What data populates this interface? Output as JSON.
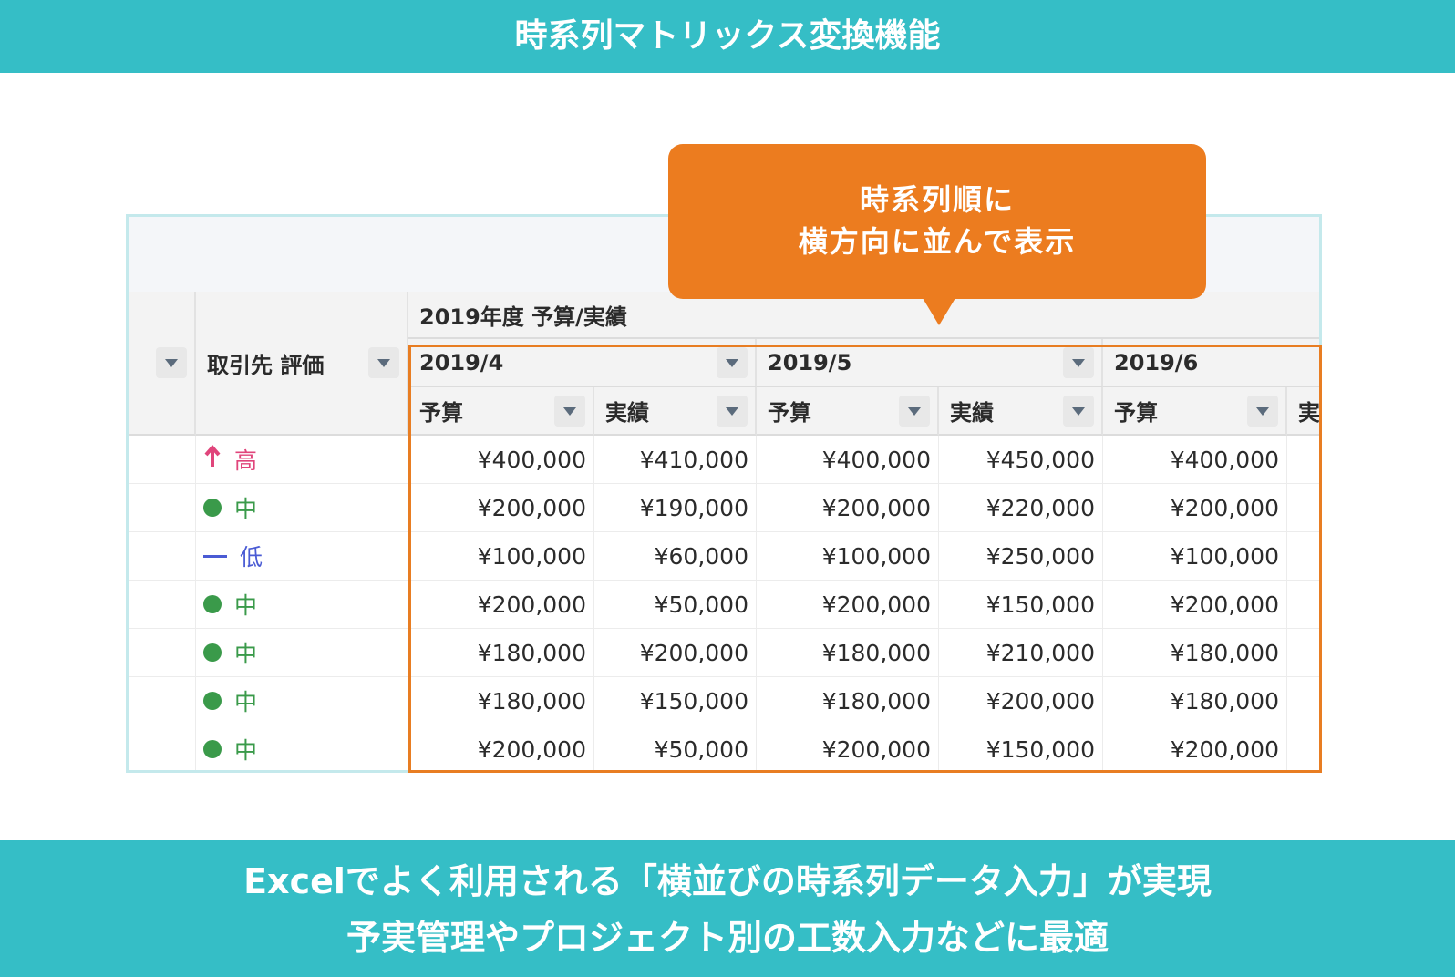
{
  "header": {
    "title": "時系列マトリックス変換機能"
  },
  "callout": {
    "lines": [
      "時系列順に",
      "横方向に並んで表示"
    ]
  },
  "table": {
    "rating_header": "取引先 評価",
    "group_header": "2019年度 予算/実績",
    "months": [
      "2019/4",
      "2019/5",
      "2019/6"
    ],
    "sub_headers": [
      "予算",
      "実績"
    ],
    "rows": [
      {
        "rating": "高",
        "icon": "arrow",
        "color": "#e0457b",
        "cells": [
          "¥400,000",
          "¥410,000",
          "¥400,000",
          "¥450,000",
          "¥400,000"
        ]
      },
      {
        "rating": "中",
        "icon": "dot",
        "color": "#3a9a4a",
        "cells": [
          "¥200,000",
          "¥190,000",
          "¥200,000",
          "¥220,000",
          "¥200,000"
        ]
      },
      {
        "rating": "低",
        "icon": "dash",
        "color": "#4a5bd4",
        "cells": [
          "¥100,000",
          "¥60,000",
          "¥100,000",
          "¥250,000",
          "¥100,000"
        ]
      },
      {
        "rating": "中",
        "icon": "dot",
        "color": "#3a9a4a",
        "cells": [
          "¥200,000",
          "¥50,000",
          "¥200,000",
          "¥150,000",
          "¥200,000"
        ]
      },
      {
        "rating": "中",
        "icon": "dot",
        "color": "#3a9a4a",
        "cells": [
          "¥180,000",
          "¥200,000",
          "¥180,000",
          "¥210,000",
          "¥180,000"
        ]
      },
      {
        "rating": "中",
        "icon": "dot",
        "color": "#3a9a4a",
        "cells": [
          "¥180,000",
          "¥150,000",
          "¥180,000",
          "¥200,000",
          "¥180,000"
        ]
      },
      {
        "rating": "中",
        "icon": "dot",
        "color": "#3a9a4a",
        "cells": [
          "¥200,000",
          "¥50,000",
          "¥200,000",
          "¥150,000",
          "¥200,000"
        ]
      }
    ]
  },
  "footer": {
    "lines": [
      "Excelでよく利用される「横並びの時系列データ入力」が実現",
      "予実管理やプロジェクト別の工数入力などに最適"
    ]
  }
}
